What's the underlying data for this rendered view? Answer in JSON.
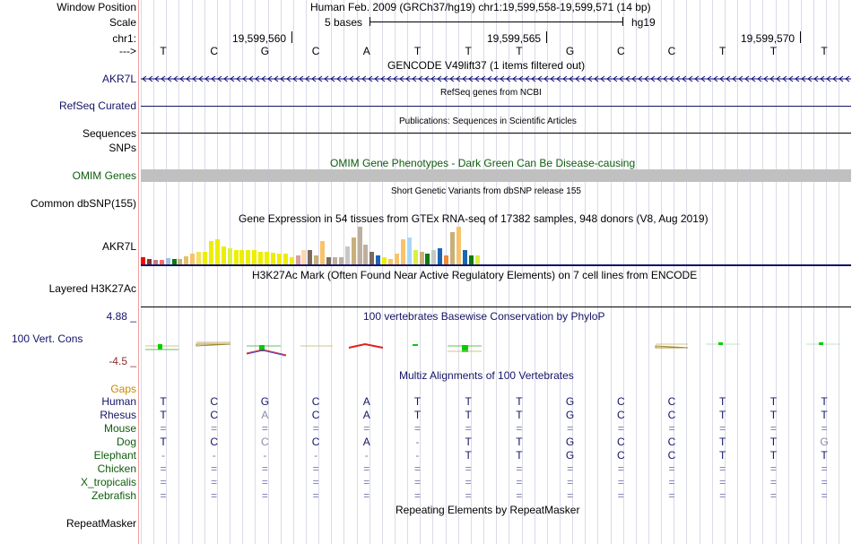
{
  "ruler": {
    "window_position_label": "Window Position",
    "scale_label": "Scale",
    "chr_label": "chr1:",
    "strand_label": "--->",
    "assembly_title": "Human Feb. 2009 (GRCh37/hg19)   chr1:19,599,558-19,599,571 (14 bp)",
    "scale_text": "5 bases",
    "scale_assembly": "hg19",
    "positions": [
      "19,599,560",
      "19,599,565",
      "19,599,570"
    ]
  },
  "reference_bases": [
    "T",
    "C",
    "G",
    "C",
    "A",
    "T",
    "T",
    "T",
    "G",
    "C",
    "C",
    "T",
    "T",
    "T"
  ],
  "tracks": {
    "gencode": {
      "title": "GENCODE V49lift37 (1 items filtered out)",
      "label": "AKR7L"
    },
    "refseq": {
      "title": "RefSeq genes from NCBI",
      "label": "RefSeq Curated"
    },
    "publications": {
      "title": "Publications: Sequences in Scientific Articles",
      "label": "Sequences"
    },
    "snps": {
      "label": "SNPs"
    },
    "omim": {
      "title": "OMIM Gene Phenotypes - Dark Green Can Be Disease-causing",
      "label": "OMIM Genes"
    },
    "dbsnp": {
      "title": "Short Genetic Variants from dbSNP release 155",
      "label": "Common dbSNP(155)"
    },
    "gtex": {
      "title": "Gene Expression in 54 tissues from GTEx RNA-seq of 17382 samples, 948 donors (V8, Aug 2019)",
      "label": "AKR7L"
    },
    "h3k27ac": {
      "title": "H3K27Ac Mark (Often Found Near Active Regulatory Elements) on 7 cell lines from ENCODE",
      "label": "Layered H3K27Ac"
    },
    "phylop": {
      "title": "100 vertebrates Basewise Conservation by PhyloP",
      "label": "100 Vert. Cons",
      "max": "4.88 _",
      "min": "-4.5 _"
    },
    "multiz": {
      "title": "Multiz Alignments of 100 Vertebrates",
      "gaps_label": "Gaps"
    },
    "repeatmasker": {
      "title": "Repeating Elements by RepeatMasker",
      "label": "RepeatMasker"
    }
  },
  "species": [
    {
      "name": "Human",
      "bases": [
        "T",
        "C",
        "G",
        "C",
        "A",
        "T",
        "T",
        "T",
        "G",
        "C",
        "C",
        "T",
        "T",
        "T"
      ]
    },
    {
      "name": "Rhesus",
      "bases": [
        "T",
        "C",
        "A",
        "C",
        "A",
        "T",
        "T",
        "T",
        "G",
        "C",
        "C",
        "T",
        "T",
        "T"
      ]
    },
    {
      "name": "Mouse",
      "bases": [
        "=",
        "=",
        "=",
        "=",
        "=",
        "=",
        "=",
        "=",
        "=",
        "=",
        "=",
        "=",
        "=",
        "="
      ]
    },
    {
      "name": "Dog",
      "bases": [
        "T",
        "C",
        "C",
        "C",
        "A",
        "-",
        "T",
        "T",
        "G",
        "C",
        "C",
        "T",
        "T",
        "G"
      ]
    },
    {
      "name": "Elephant",
      "bases": [
        "-",
        "-",
        "-",
        "-",
        "-",
        "-",
        "T",
        "T",
        "G",
        "C",
        "C",
        "T",
        "T",
        "T"
      ]
    },
    {
      "name": "Chicken",
      "bases": [
        "=",
        "=",
        "=",
        "=",
        "=",
        "=",
        "=",
        "=",
        "=",
        "=",
        "=",
        "=",
        "=",
        "="
      ]
    },
    {
      "name": "X_tropicalis",
      "bases": [
        "=",
        "=",
        "=",
        "=",
        "=",
        "=",
        "=",
        "=",
        "=",
        "=",
        "=",
        "=",
        "=",
        "="
      ]
    },
    {
      "name": "Zebrafish",
      "bases": [
        "=",
        "=",
        "=",
        "=",
        "=",
        "=",
        "=",
        "=",
        "=",
        "=",
        "=",
        "=",
        "=",
        "="
      ]
    }
  ],
  "colors": {
    "gtex_bars": [
      "#f8c36b",
      "#ef8a3a",
      "#c7c7c7",
      "#0e7b0e",
      "#c8b07a",
      "#e4c06a",
      "#f8df5a",
      "#ffd8b0",
      "#a6d8ff",
      "#1a66b3",
      "#bdb0a0",
      "#7c6b5a",
      "#d9a0a0",
      "#ddee44",
      "#eeee00",
      "#9fc3e0",
      "#c08080",
      "#ff6b6b",
      "#8b2f2f",
      "#ff0000"
    ]
  }
}
